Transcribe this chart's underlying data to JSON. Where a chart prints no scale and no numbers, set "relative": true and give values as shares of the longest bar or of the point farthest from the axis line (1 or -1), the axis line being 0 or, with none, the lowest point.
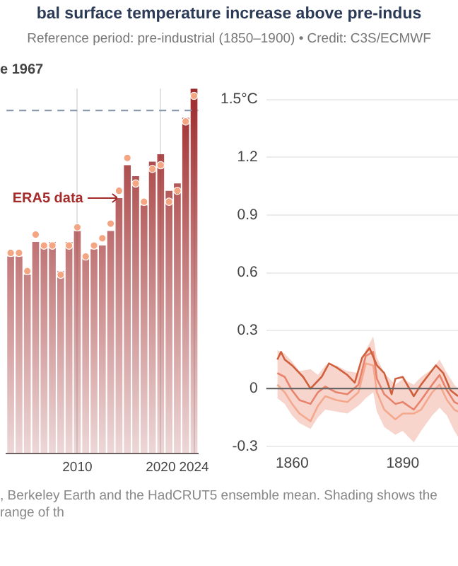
{
  "chart_data": [
    {
      "type": "bar",
      "title": "bal surface temperature increase above pre-indus",
      "subtitle": "Reference period: pre-industrial (1850–1900) • Credit: C3S/ECMWF",
      "relative": true,
      "legend": false,
      "grid": "x",
      "marker": "circle",
      "categories": [
        null,
        null,
        null,
        null,
        null,
        null,
        null,
        null,
        "2010",
        null,
        null,
        null,
        null,
        null,
        null,
        null,
        null,
        null,
        "2020",
        null,
        null,
        null,
        "2024"
      ],
      "series": [
        {
          "type": "bar",
          "color": "#9e2a2b",
          "values": [
            0.54,
            0.54,
            0.49,
            0.58,
            0.57,
            0.58,
            0.5,
            0.58,
            0.61,
            0.54,
            0.56,
            0.57,
            0.61,
            0.7,
            0.79,
            0.76,
            0.68,
            0.8,
            0.82,
            0.72,
            0.74,
            0.92,
            1
          ]
        },
        {
          "type": "scatter",
          "color": "#f4a582",
          "values": [
            0.55,
            0.55,
            0.5,
            0.6,
            0.57,
            0.57,
            0.49,
            0.57,
            0.62,
            0.54,
            0.57,
            0.59,
            0.63,
            0.72,
            0.81,
            0.74,
            0.69,
            0.78,
            0.79,
            0.69,
            0.72,
            0.91,
            0.98
          ]
        }
      ],
      "ref_lines": [
        {
          "axis": "y",
          "value": 0.94,
          "color": "#8c9aab",
          "line_style": "dashed"
        }
      ],
      "annotations": [
        "e 1967",
        "ERA5 data",
        ", Berkeley Earth and the HadCRUT5 ensemble mean. Shading shows the range of th"
      ]
    },
    {
      "type": "line",
      "legend": false,
      "grid": "y",
      "marker": "none",
      "line_style": "solid",
      "xlim": [
        1853,
        1905
      ],
      "xticks": [
        1860,
        1890
      ],
      "ylim": [
        -0.3,
        1.5
      ],
      "yticks": [
        -0.3,
        0.0,
        0.3,
        0.6,
        0.9,
        1.2,
        {
          "value": 1.5,
          "label": "1.5°C"
        }
      ],
      "ref_lines": [
        {
          "axis": "y",
          "value": 0,
          "color": "#666666"
        }
      ],
      "series": [
        {
          "color": "#d0603d",
          "x": [
            1856,
            1857,
            1858,
            1860,
            1863,
            1865,
            1868,
            1870,
            1872,
            1875,
            1877,
            1879,
            1881,
            1883,
            1885,
            1887,
            1888,
            1890,
            1893,
            1895,
            1897,
            1899,
            1901,
            1903,
            1905
          ],
          "values": [
            0.15,
            0.19,
            0.15,
            0.12,
            0.06,
            0,
            0.06,
            0.13,
            0.11,
            0.07,
            0.03,
            0.16,
            0.21,
            0.12,
            0.08,
            -0.03,
            0.05,
            0.06,
            -0.04,
            0.02,
            0.07,
            0.12,
            0.08,
            -0.01,
            -0.04
          ]
        },
        {
          "color": "#e8826a",
          "x": [
            1856,
            1858,
            1860,
            1862,
            1865,
            1867,
            1869,
            1872,
            1875,
            1878,
            1880,
            1882,
            1883,
            1885,
            1888,
            1890,
            1893,
            1895,
            1898,
            1900,
            1902,
            1904,
            1905
          ],
          "values": [
            0.08,
            0.06,
            -0.01,
            -0.06,
            -0.08,
            -0.02,
            0.01,
            -0.02,
            -0.03,
            0.02,
            0.17,
            0.19,
            0.05,
            -0.03,
            -0.08,
            -0.07,
            -0.11,
            -0.06,
            0.02,
            0.07,
            -0.01,
            -0.07,
            -0.08
          ],
          "upper": [
            0.2,
            0.18,
            0.14,
            0.09,
            0.1,
            0.07,
            0.12,
            0.12,
            0.09,
            0.08,
            0.2,
            0.27,
            0.16,
            0.08,
            0.02,
            0.05,
            0.02,
            0.06,
            0.1,
            0.15,
            0.08,
            0.02,
            0
          ],
          "lower": [
            -0.05,
            -0.08,
            -0.14,
            -0.18,
            -0.21,
            -0.15,
            -0.11,
            -0.12,
            -0.13,
            -0.09,
            -0.05,
            -0.02,
            -0.12,
            -0.2,
            -0.24,
            -0.22,
            -0.28,
            -0.22,
            -0.14,
            -0.1,
            -0.14,
            -0.22,
            -0.25
          ]
        },
        {
          "color": "#f4a88e",
          "x": [
            1856,
            1858,
            1860,
            1862,
            1865,
            1867,
            1869,
            1872,
            1875,
            1878,
            1880,
            1882,
            1883,
            1885,
            1888,
            1890,
            1893,
            1895,
            1898,
            1900,
            1902,
            1904,
            1905
          ],
          "values": [
            0.02,
            -0.02,
            -0.08,
            -0.13,
            -0.17,
            -0.09,
            -0.04,
            -0.06,
            -0.07,
            -0.02,
            0.13,
            0.12,
            -0.02,
            -0.11,
            -0.16,
            -0.13,
            -0.13,
            -0.11,
            -0.02,
            0.02,
            -0.06,
            -0.11,
            -0.12
          ]
        }
      ]
    }
  ]
}
